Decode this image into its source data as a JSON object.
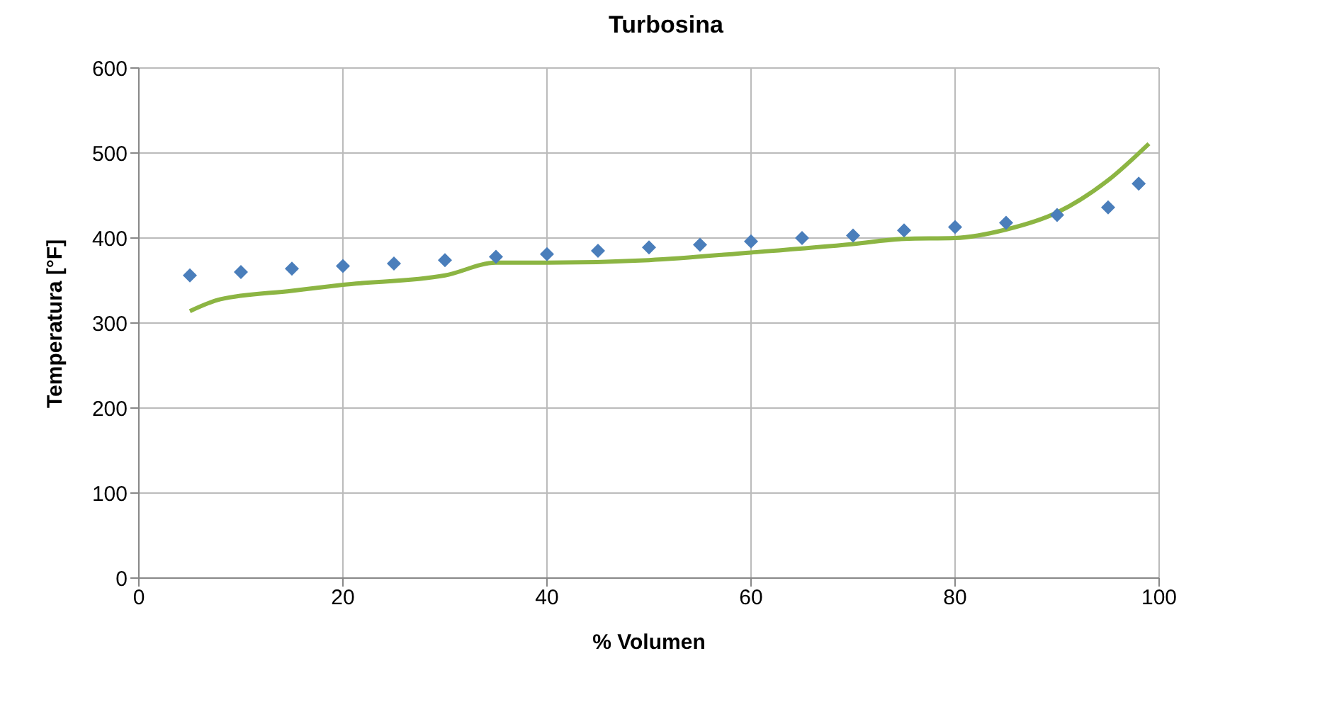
{
  "chart_data": {
    "type": "scatter",
    "title": "Turbosina",
    "xlabel": "% Volumen",
    "ylabel": "Temperatura [°F]",
    "xlim": [
      0,
      100
    ],
    "xticks": [
      0,
      20,
      40,
      60,
      80,
      100
    ],
    "ylim": [
      0,
      600
    ],
    "yticks": [
      0,
      100,
      200,
      300,
      400,
      500,
      600
    ],
    "grid": true,
    "series": [
      {
        "color": "#4a7ebb",
        "marker": "diamond",
        "x": [
          5,
          10,
          15,
          20,
          25,
          30,
          35,
          40,
          45,
          50,
          55,
          60,
          65,
          70,
          75,
          80,
          85,
          90,
          95,
          98
        ],
        "values": [
          356,
          360,
          364,
          367,
          370,
          374,
          378,
          381,
          385,
          389,
          392,
          396,
          400,
          403,
          409,
          413,
          418,
          427,
          436,
          464
        ]
      },
      {
        "type": "line",
        "color": "#8cb543",
        "marker": "none",
        "x": [
          5,
          8,
          15,
          20,
          30,
          35,
          40,
          50,
          60,
          70,
          75,
          80,
          85,
          90,
          95,
          99
        ],
        "values": [
          314,
          328,
          338,
          345,
          356,
          371,
          371,
          374,
          383,
          393,
          399,
          400,
          410,
          430,
          468,
          511
        ]
      }
    ]
  }
}
